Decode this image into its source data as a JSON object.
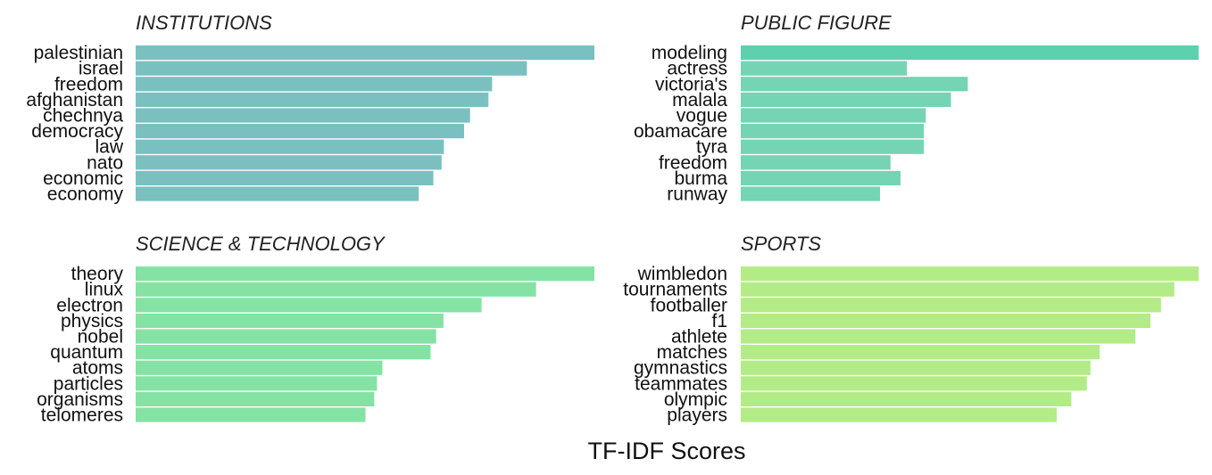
{
  "chart_data": {
    "type": "bar",
    "orientation": "horizontal",
    "xlabel": "TF-IDF Scores",
    "ylabel": "",
    "grid": false,
    "facets": [
      {
        "title": "INSTITUTIONS",
        "color": "#7bc0c0",
        "categories": [
          "palestinian",
          "israel",
          "freedom",
          "afghanistan",
          "chechnya",
          "democracy",
          "law",
          "nato",
          "economic",
          "economy"
        ],
        "values": [
          1.0,
          0.853,
          0.777,
          0.769,
          0.729,
          0.716,
          0.672,
          0.667,
          0.649,
          0.617
        ]
      },
      {
        "title": "PUBLIC FIGURE",
        "color": "#74d4b4",
        "highlight_color": "#5dd1ad",
        "categories": [
          "modeling",
          "actress",
          "victoria's",
          "malala",
          "vogue",
          "obamacare",
          "tyra",
          "freedom",
          "burma",
          "runway"
        ],
        "values": [
          1.0,
          0.363,
          0.496,
          0.459,
          0.404,
          0.4,
          0.4,
          0.327,
          0.349,
          0.304
        ]
      },
      {
        "title": "SCIENCE & TECHNOLOGY",
        "color": "#84e3a4",
        "categories": [
          "theory",
          "linux",
          "electron",
          "physics",
          "nobel",
          "quantum",
          "atoms",
          "particles",
          "organisms",
          "telomeres"
        ],
        "values": [
          1.0,
          0.873,
          0.754,
          0.671,
          0.655,
          0.643,
          0.538,
          0.526,
          0.52,
          0.501
        ]
      },
      {
        "title": "SPORTS",
        "color": "#b3ec86",
        "categories": [
          "wimbledon",
          "tournaments",
          "footballer",
          "f1",
          "athlete",
          "matches",
          "gymnastics",
          "teammates",
          "olympic",
          "players"
        ],
        "values": [
          1.0,
          0.947,
          0.918,
          0.895,
          0.862,
          0.784,
          0.764,
          0.756,
          0.722,
          0.69
        ]
      }
    ]
  }
}
